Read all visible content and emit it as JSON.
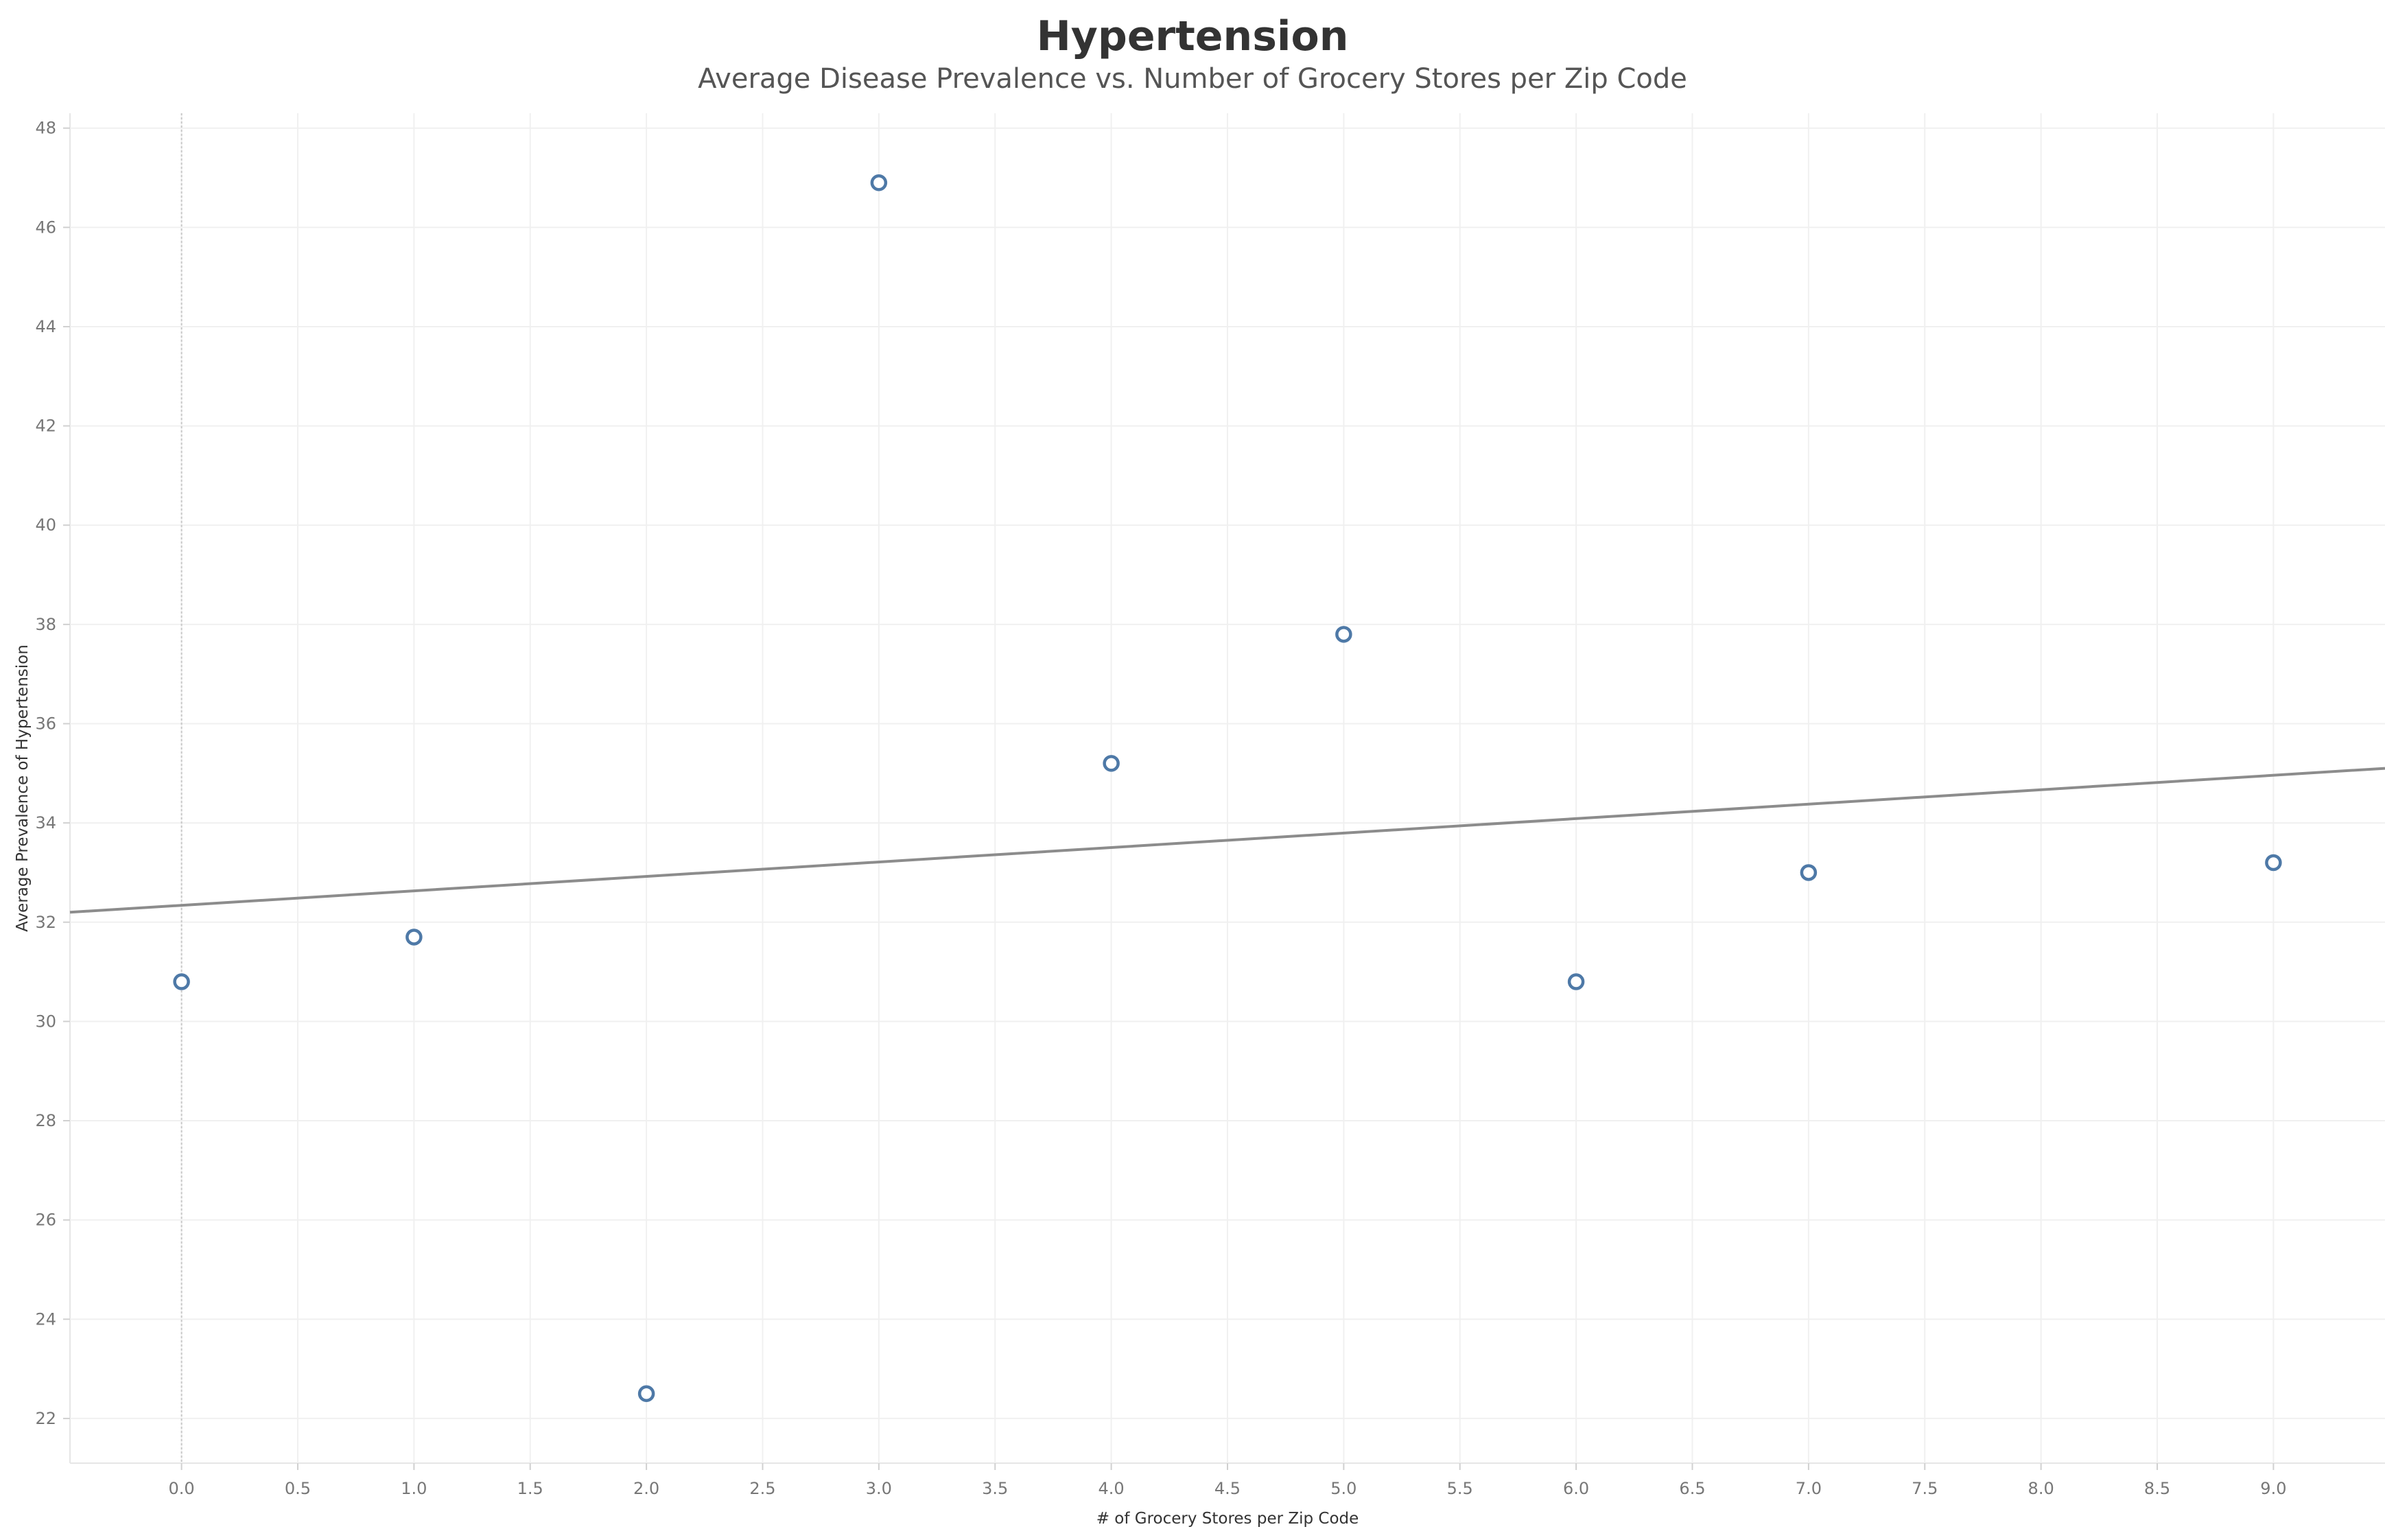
{
  "chart_data": {
    "type": "scatter",
    "title": "Hypertension",
    "subtitle": "Average Disease Prevalence vs. Number of Grocery Stores per Zip Code",
    "xlabel": "# of Grocery Stores per Zip Code",
    "ylabel": "Average Prevalence of Hypertension",
    "xlim": [
      -0.48,
      9.48
    ],
    "ylim": [
      21.1,
      48.3
    ],
    "x_ticks": [
      "0.0",
      "0.5",
      "1.0",
      "1.5",
      "2.0",
      "2.5",
      "3.0",
      "3.5",
      "4.0",
      "4.5",
      "5.0",
      "5.5",
      "6.0",
      "6.5",
      "7.0",
      "7.5",
      "8.0",
      "8.5",
      "9.0"
    ],
    "y_ticks": [
      "22",
      "24",
      "26",
      "28",
      "30",
      "32",
      "34",
      "36",
      "38",
      "40",
      "42",
      "44",
      "46",
      "48"
    ],
    "points": [
      {
        "x": 0,
        "y": 30.8
      },
      {
        "x": 1,
        "y": 31.7
      },
      {
        "x": 2,
        "y": 22.5
      },
      {
        "x": 3,
        "y": 46.9
      },
      {
        "x": 4,
        "y": 35.2
      },
      {
        "x": 5,
        "y": 37.8
      },
      {
        "x": 6,
        "y": 30.8
      },
      {
        "x": 7,
        "y": 33.0
      },
      {
        "x": 9,
        "y": 33.2
      }
    ],
    "trend_line": {
      "x": [
        -0.48,
        9.48
      ],
      "y": [
        32.2,
        35.1
      ]
    },
    "grid": true,
    "zero_line": true,
    "legend": "none",
    "marker_color": "#4e79a7",
    "trend_color": "#8c8c8c",
    "grid_color": "#f0f0f0"
  }
}
